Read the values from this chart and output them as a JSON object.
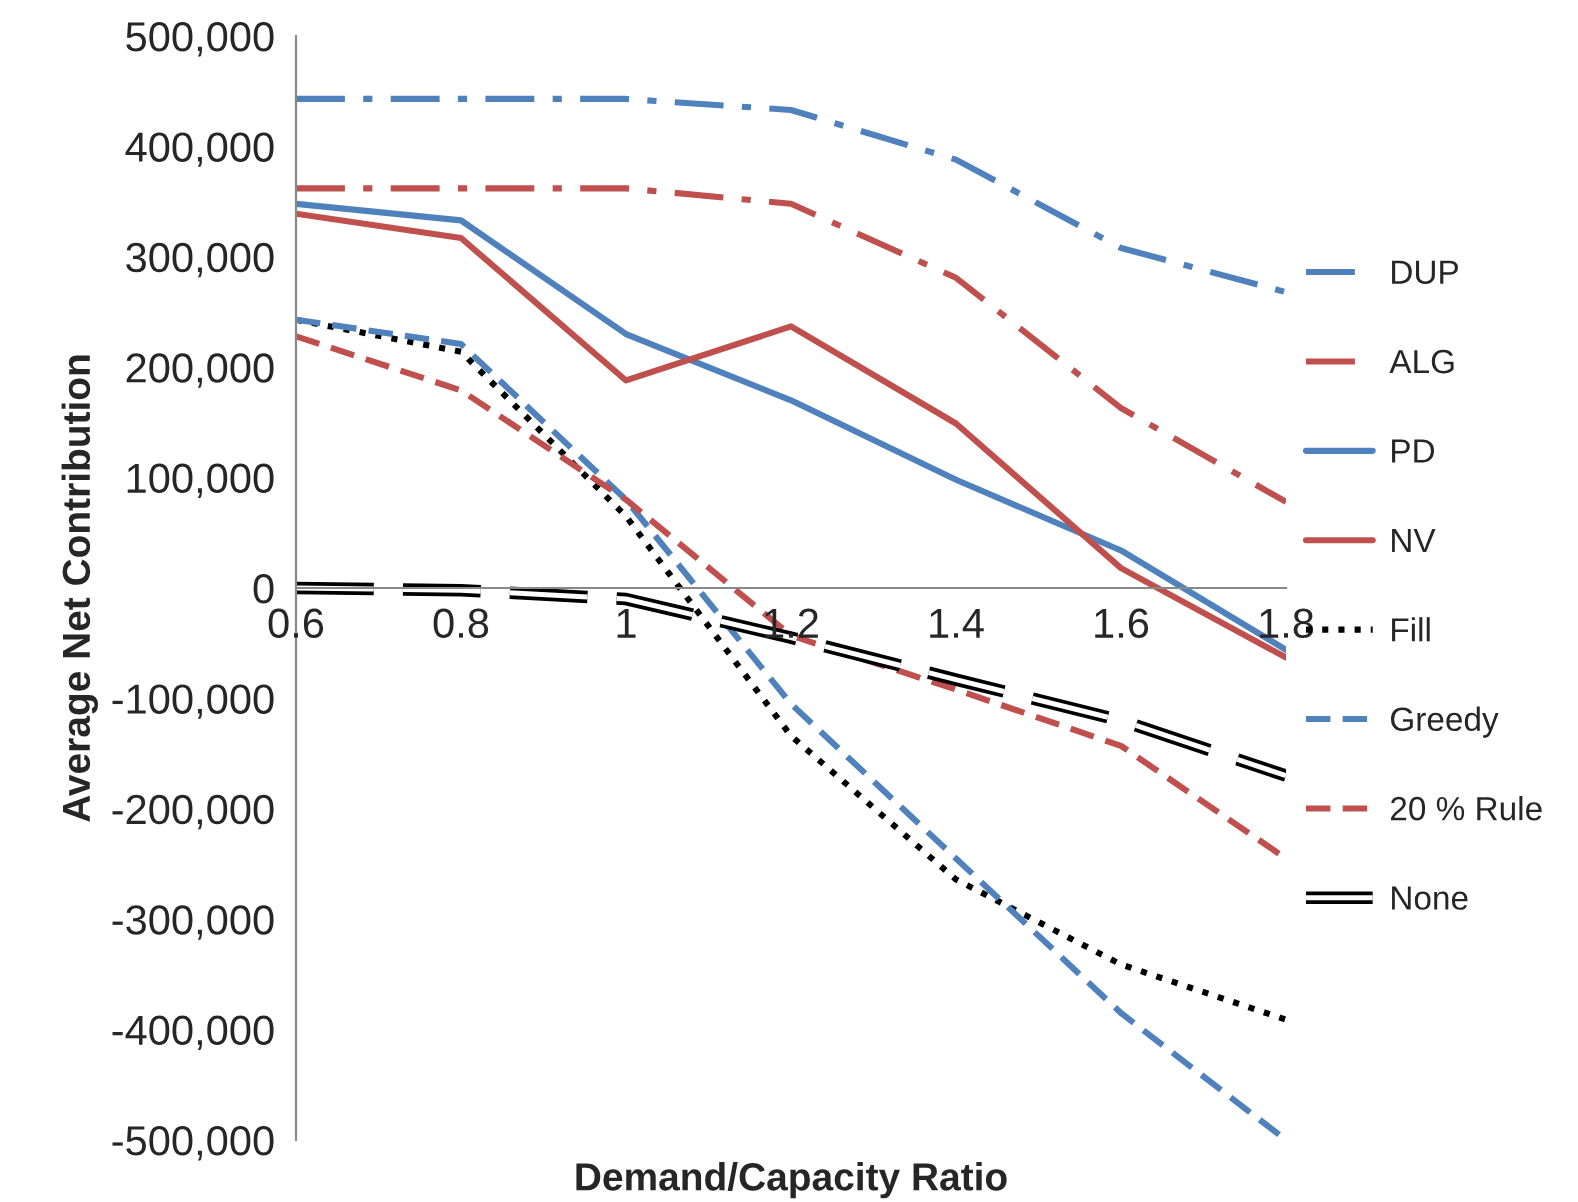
{
  "chart_data": {
    "type": "line",
    "xlabel": "Demand/Capacity Ratio",
    "ylabel": "Average Net Contribution",
    "x": [
      0.6,
      0.8,
      1,
      1.2,
      1.4,
      1.6,
      1.8
    ],
    "series": [
      {
        "name": "DUP",
        "color": "#4f81bd",
        "line_style": "dashdot",
        "values": [
          443000,
          443000,
          443000,
          433000,
          388000,
          308000,
          268000
        ]
      },
      {
        "name": "ALG",
        "color": "#c0504d",
        "line_style": "dashdot",
        "values": [
          362000,
          362000,
          362000,
          348000,
          281000,
          163000,
          78000
        ]
      },
      {
        "name": "PD",
        "color": "#4f81bd",
        "line_style": "solid",
        "values": [
          348000,
          333000,
          230000,
          170000,
          98000,
          34000,
          -56000
        ]
      },
      {
        "name": "NV",
        "color": "#c0504d",
        "line_style": "solid",
        "values": [
          339000,
          317000,
          188000,
          237000,
          149000,
          18000,
          -63000
        ]
      },
      {
        "name": "Fill",
        "color": "#000000",
        "line_style": "dotted",
        "values": [
          243000,
          214000,
          65000,
          -134000,
          -264000,
          -341000,
          -391000
        ]
      },
      {
        "name": "Greedy",
        "color": "#4f81bd",
        "line_style": "dashed",
        "values": [
          243000,
          221000,
          80000,
          -105000,
          -245000,
          -385000,
          -500000
        ]
      },
      {
        "name": "20 % Rule",
        "color": "#c0504d",
        "line_style": "dashed",
        "values": [
          228000,
          179000,
          80000,
          -43000,
          -92000,
          -143000,
          -245000
        ]
      },
      {
        "name": "None",
        "color": "#000000",
        "line_style": "longdash_double",
        "values": [
          0,
          -2000,
          -10000,
          -45000,
          -83000,
          -120000,
          -170000
        ]
      }
    ],
    "xlim": [
      0.6,
      1.8
    ],
    "xticks": [
      0.6,
      0.8,
      1,
      1.2,
      1.4,
      1.6,
      1.8
    ],
    "ylim": [
      -500000,
      500000
    ],
    "yticks": [
      {
        "value": -500000,
        "label": "-500,000"
      },
      {
        "value": -400000,
        "label": "-400,000"
      },
      {
        "value": -300000,
        "label": "-300,000"
      },
      {
        "value": -200000,
        "label": "-200,000"
      },
      {
        "value": -100000,
        "label": "-100,000"
      },
      0,
      {
        "value": 100000,
        "label": "100,000"
      },
      {
        "value": 200000,
        "label": "200,000"
      },
      {
        "value": 300000,
        "label": "300,000"
      },
      {
        "value": 400000,
        "label": "400,000"
      },
      {
        "value": 500000,
        "label": "500,000"
      }
    ],
    "grid": false,
    "legend": "right",
    "marker": "none"
  }
}
